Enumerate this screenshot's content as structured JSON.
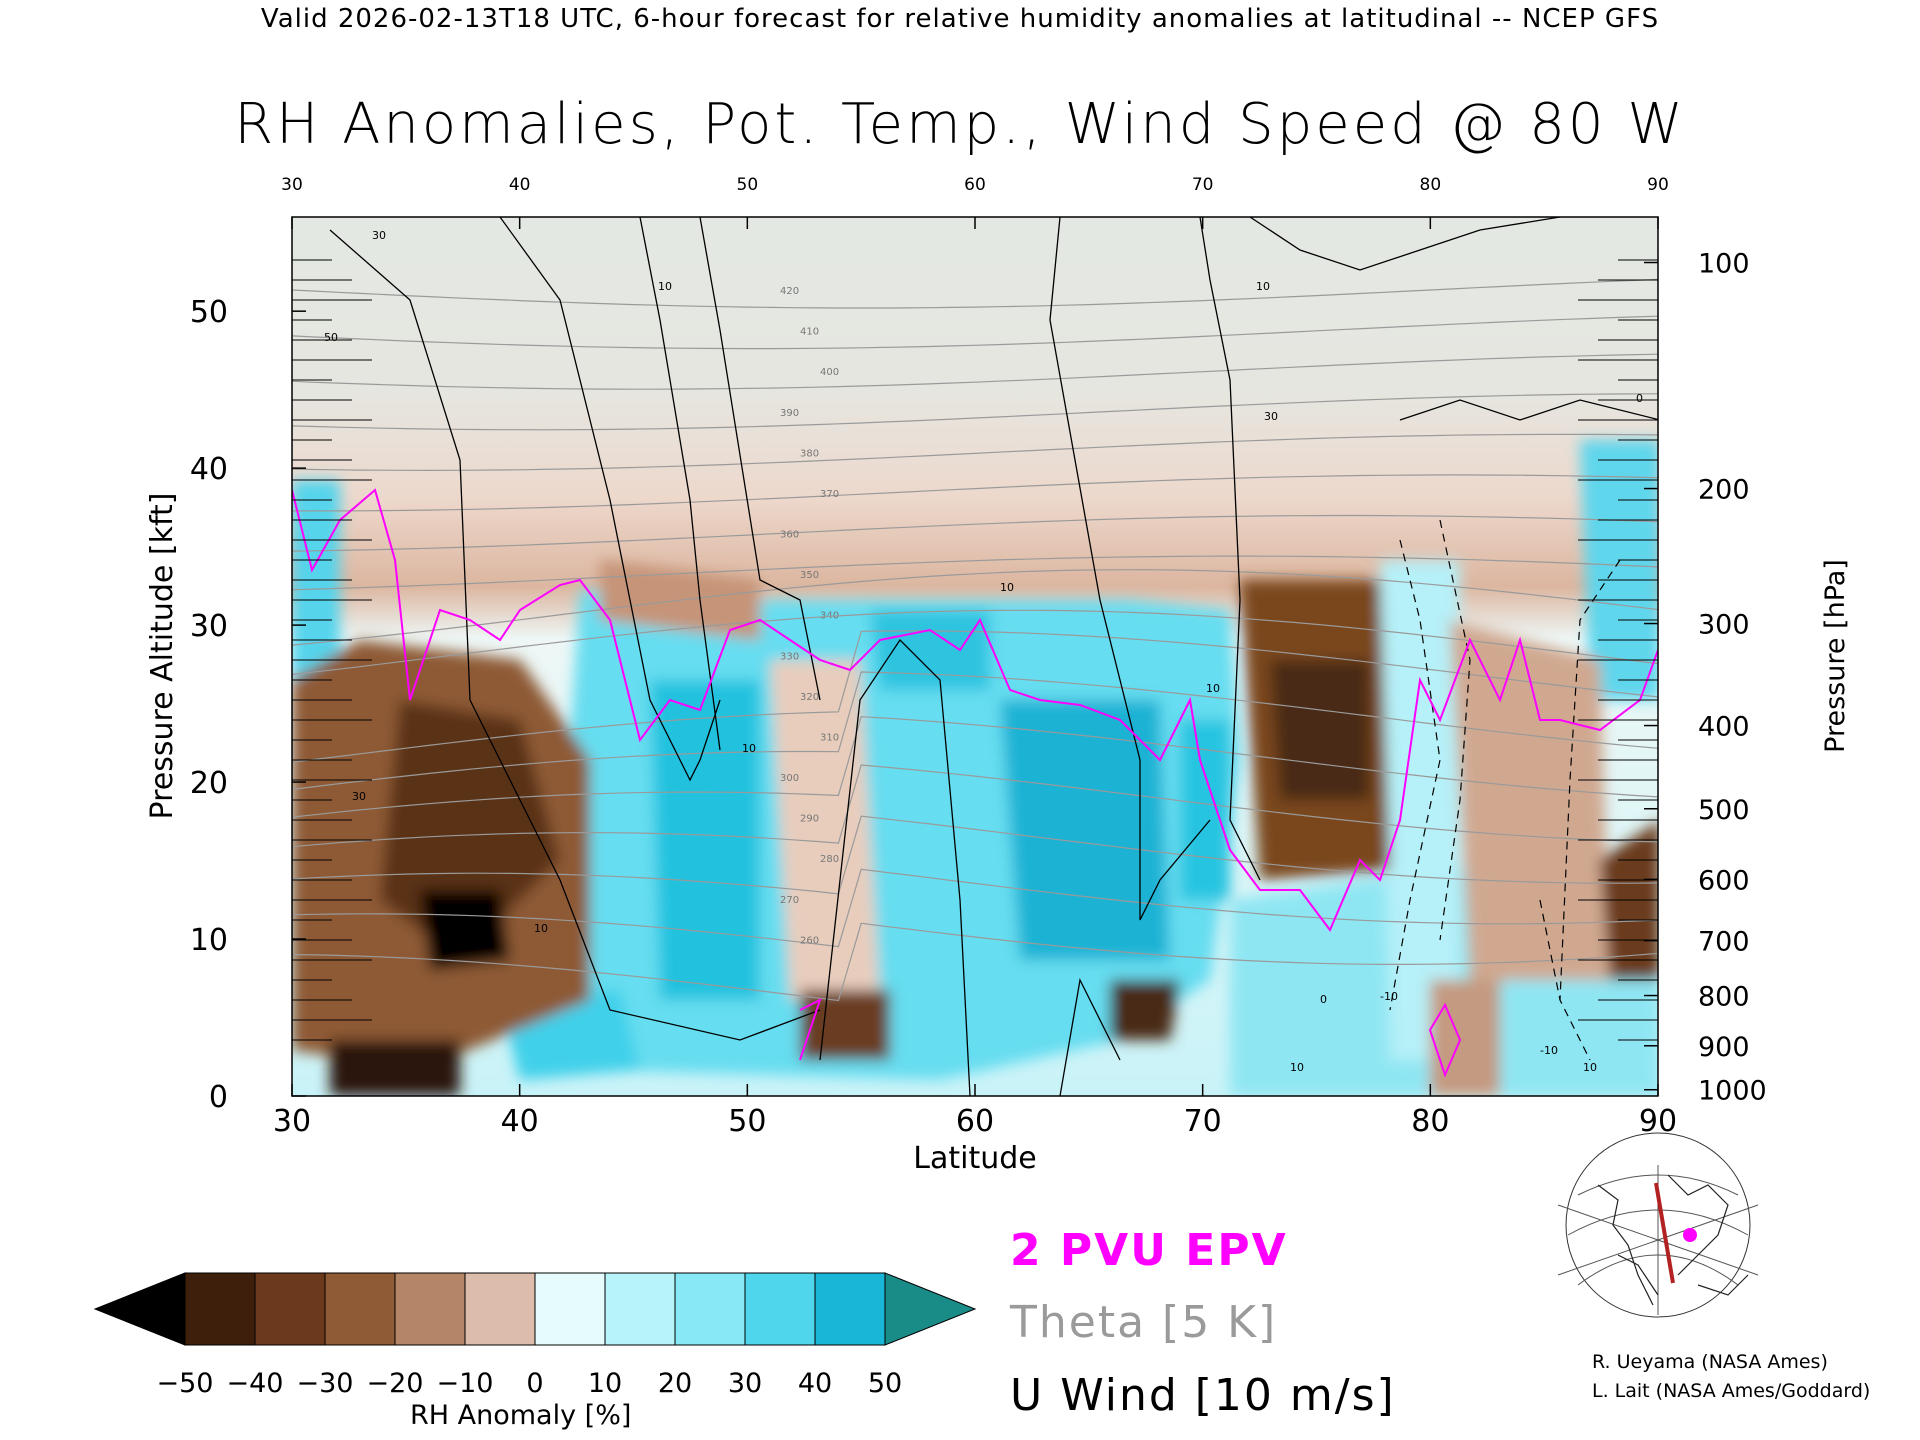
{
  "header": "Valid 2026-02-13T18 UTC, 6-hour forecast for relative humidity anomalies at latitudinal -- NCEP GFS",
  "chart_data": {
    "type": "heatmap",
    "title": "RH Anomalies, Pot. Temp., Wind Speed @ 80 W",
    "xlabel": "Latitude",
    "ylabel": "Pressure Altitude [kft]",
    "ylabel_right": "Pressure [hPa]",
    "xlim": [
      30,
      90
    ],
    "ylim": [
      0,
      56
    ],
    "x_ticks": [
      "30",
      "40",
      "50",
      "60",
      "70",
      "80",
      "90"
    ],
    "y_ticks": [
      "0",
      "10",
      "20",
      "30",
      "40",
      "50"
    ],
    "y_tick_values": [
      0,
      10,
      20,
      30,
      40,
      50
    ],
    "pressure_ticks": [
      {
        "label": "100",
        "kft": 53.1
      },
      {
        "label": "200",
        "kft": 38.7
      },
      {
        "label": "300",
        "kft": 30.1
      },
      {
        "label": "400",
        "kft": 23.6
      },
      {
        "label": "500",
        "kft": 18.3
      },
      {
        "label": "600",
        "kft": 13.8
      },
      {
        "label": "700",
        "kft": 9.9
      },
      {
        "label": "800",
        "kft": 6.4
      },
      {
        "label": "900",
        "kft": 3.2
      },
      {
        "label": "1000",
        "kft": 0.4
      }
    ],
    "theta_labels": [
      "420",
      "410",
      "400",
      "390",
      "380",
      "370",
      "360",
      "350",
      "340",
      "330",
      "320",
      "310",
      "300",
      "290",
      "280",
      "270",
      "260"
    ],
    "wind_labels": [
      "30",
      "50",
      "30",
      "10",
      "10",
      "10",
      "10",
      "10",
      "30",
      "10",
      "0",
      "0",
      "10",
      "-10",
      "-10",
      "10"
    ],
    "legend": {
      "epv": "2 PVU EPV",
      "theta": "Theta [5 K]",
      "wind": "U Wind [10 m/s]"
    },
    "colorbar": {
      "label": "RH Anomaly [%]",
      "ticks": [
        "−50",
        "−40",
        "−30",
        "−20",
        "−10",
        "0",
        "10",
        "20",
        "30",
        "40",
        "50"
      ],
      "colors": [
        "#000000",
        "#3d1f0c",
        "#6b3a1c",
        "#8f5a36",
        "#b48566",
        "#dcbcaa",
        "#f3e9e3",
        "#e6fcfc",
        "#b6f4fa",
        "#86e9f5",
        "#4fd6ec",
        "#1ab6d8",
        "#0a879f",
        "#1a8c88"
      ]
    },
    "colors": {
      "epv": "#ff00ff",
      "theta": "#9a9a9a",
      "wind": "#000000",
      "upper_background": "#e6e9e4"
    }
  },
  "map_inset": {
    "marker_color": "#ff00ff",
    "cross_section_color": "#b22222"
  },
  "credits": {
    "line1": "R. Ueyama (NASA Ames)",
    "line2": "L. Lait (NASA Ames/Goddard)"
  }
}
